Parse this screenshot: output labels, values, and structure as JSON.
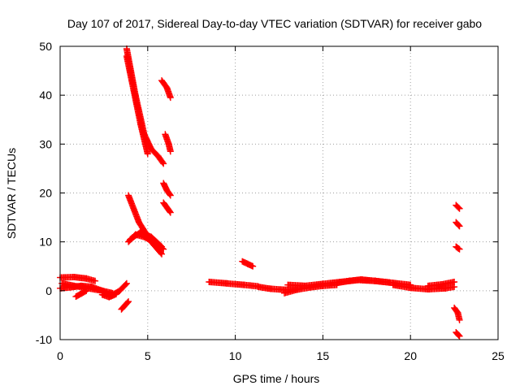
{
  "chart_data": {
    "type": "scatter",
    "title": "Day 107 of 2017, Sidereal Day-to-day VTEC variation (SDTVAR) for receiver gabo",
    "xlabel": "GPS time / hours",
    "ylabel": "SDTVAR / TECUs",
    "xlim": [
      0,
      25
    ],
    "ylim": [
      -10,
      50
    ],
    "x_ticks": [
      0,
      5,
      10,
      15,
      20,
      25
    ],
    "y_ticks": [
      -10,
      0,
      10,
      20,
      30,
      40,
      50
    ],
    "x_tick_labels": [
      "0",
      "5",
      "10",
      "15",
      "20",
      "25"
    ],
    "y_tick_labels": [
      "-10",
      "0",
      "10",
      "20",
      "30",
      "40",
      "50"
    ],
    "grid": true,
    "marker": "plus",
    "series": [
      {
        "name": "SDTVAR",
        "color": "#ff0000",
        "tracks": [
          {
            "x": [
              0.0,
              0.8,
              1.5,
              2.0
            ],
            "y": [
              2.7,
              2.8,
              2.5,
              2.0
            ]
          },
          {
            "x": [
              0.0,
              0.6,
              1.2,
              1.8,
              2.4,
              2.9,
              3.4,
              3.8
            ],
            "y": [
              0.5,
              0.7,
              1.0,
              0.8,
              0.0,
              -1.0,
              0.0,
              1.5
            ]
          },
          {
            "x": [
              0.1,
              0.8,
              1.6,
              2.4,
              3.0
            ],
            "y": [
              1.5,
              1.0,
              0.5,
              0.0,
              -0.5
            ]
          },
          {
            "x": [
              0.9,
              1.2,
              1.5
            ],
            "y": [
              -1.2,
              -0.6,
              0.0
            ]
          },
          {
            "x": [
              2.4,
              2.8,
              3.2
            ],
            "y": [
              -0.8,
              -1.3,
              -0.7
            ]
          },
          {
            "x": [
              3.5,
              3.9
            ],
            "y": [
              -3.8,
              -2.2
            ]
          },
          {
            "x": [
              3.8,
              4.3,
              4.8,
              5.2,
              5.6,
              5.9
            ],
            "y": [
              49.5,
              40.0,
              32.0,
              29.0,
              27.5,
              26.0
            ]
          },
          {
            "x": [
              3.8,
              4.2,
              4.6,
              5.0
            ],
            "y": [
              48.0,
              41.0,
              34.0,
              28.0
            ]
          },
          {
            "x": [
              3.9,
              4.5,
              5.2,
              5.8
            ],
            "y": [
              19.5,
              14.0,
              10.0,
              7.5
            ]
          },
          {
            "x": [
              3.9,
              4.3,
              4.8,
              5.3,
              5.9
            ],
            "y": [
              10.0,
              11.5,
              11.0,
              10.0,
              8.5
            ]
          },
          {
            "x": [
              4.0,
              4.6,
              5.2,
              5.8
            ],
            "y": [
              10.5,
              12.0,
              11.0,
              9.0
            ]
          },
          {
            "x": [
              5.8,
              6.1,
              6.3
            ],
            "y": [
              43.0,
              41.5,
              39.5
            ]
          },
          {
            "x": [
              6.0,
              6.2,
              6.3
            ],
            "y": [
              32.0,
              30.0,
              28.5
            ]
          },
          {
            "x": [
              5.9,
              6.1,
              6.3
            ],
            "y": [
              22.0,
              20.5,
              19.5
            ]
          },
          {
            "x": [
              5.9,
              6.1,
              6.3
            ],
            "y": [
              18.0,
              17.0,
              16.0
            ]
          },
          {
            "x": [
              8.5,
              9.5,
              10.5,
              11.3
            ],
            "y": [
              1.8,
              1.5,
              1.2,
              0.9
            ]
          },
          {
            "x": [
              10.4,
              10.7,
              11.0
            ],
            "y": [
              6.0,
              5.5,
              5.0
            ]
          },
          {
            "x": [
              11.3,
              12.0,
              12.8,
              13.5
            ],
            "y": [
              0.8,
              0.4,
              0.2,
              0.3
            ]
          },
          {
            "x": [
              12.8,
              13.5,
              14.3,
              15.0,
              15.8
            ],
            "y": [
              -0.5,
              0.2,
              0.7,
              1.0,
              1.2
            ]
          },
          {
            "x": [
              13.0,
              14.0,
              15.0,
              16.0,
              17.0,
              18.0,
              19.0,
              20.0
            ],
            "y": [
              1.2,
              1.0,
              1.4,
              1.8,
              2.2,
              2.0,
              1.6,
              1.2
            ]
          },
          {
            "x": [
              15.8,
              16.5,
              17.2,
              18.0,
              18.8
            ],
            "y": [
              1.6,
              2.0,
              2.3,
              2.0,
              1.7
            ]
          },
          {
            "x": [
              19.0,
              20.0,
              21.0,
              22.0,
              22.5
            ],
            "y": [
              1.2,
              0.6,
              0.3,
              0.5,
              0.8
            ]
          },
          {
            "x": [
              21.0,
              21.8,
              22.5
            ],
            "y": [
              1.0,
              1.3,
              1.8
            ]
          },
          {
            "x": [
              22.6,
              22.8
            ],
            "y": [
              17.5,
              16.8
            ]
          },
          {
            "x": [
              22.6,
              22.8
            ],
            "y": [
              14.0,
              13.2
            ]
          },
          {
            "x": [
              22.6,
              22.8
            ],
            "y": [
              9.0,
              8.5
            ]
          },
          {
            "x": [
              22.5,
              22.7,
              22.8
            ],
            "y": [
              -3.5,
              -4.5,
              -6.0
            ]
          },
          {
            "x": [
              22.6,
              22.8
            ],
            "y": [
              -8.5,
              -9.3
            ]
          }
        ]
      }
    ]
  }
}
